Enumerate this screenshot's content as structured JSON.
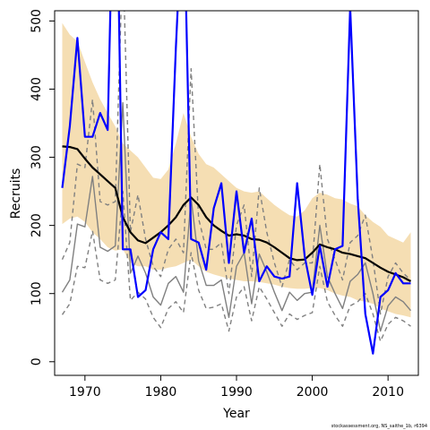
{
  "chart_data": {
    "type": "line",
    "xlabel": "Year",
    "ylabel": "Recruits",
    "xlim": [
      1966,
      2014
    ],
    "ylim": [
      -20,
      515
    ],
    "x_ticks": [
      1970,
      1980,
      1990,
      2000,
      2010
    ],
    "x_tick_labels": [
      "1970",
      "1980",
      "1990",
      "2000",
      "2010"
    ],
    "y_ticks": [
      0,
      100,
      200,
      300,
      400,
      500
    ],
    "y_tick_labels": [
      "0",
      "100",
      "200",
      "300",
      "400",
      "500"
    ],
    "footer": "stockassessment.org, NS_saithe_1b, r6394",
    "years": [
      1967,
      1968,
      1969,
      1970,
      1971,
      1972,
      1973,
      1974,
      1975,
      1976,
      1977,
      1978,
      1979,
      1980,
      1981,
      1982,
      1983,
      1984,
      1985,
      1986,
      1987,
      1988,
      1989,
      1990,
      1991,
      1992,
      1993,
      1994,
      1995,
      1996,
      1997,
      1998,
      1999,
      2000,
      2001,
      2002,
      2003,
      2004,
      2005,
      2006,
      2007,
      2008,
      2009,
      2010,
      2011,
      2012,
      2013
    ],
    "band": {
      "color": "#f5deb3",
      "upper": [
        497,
        480,
        470,
        440,
        410,
        385,
        365,
        345,
        320,
        310,
        300,
        285,
        270,
        268,
        282,
        320,
        365,
        330,
        305,
        290,
        285,
        275,
        265,
        255,
        250,
        248,
        250,
        240,
        230,
        222,
        215,
        213,
        222,
        240,
        248,
        245,
        240,
        238,
        232,
        228,
        215,
        205,
        198,
        185,
        180,
        175,
        190
      ],
      "lower": [
        202,
        210,
        213,
        205,
        190,
        180,
        168,
        163,
        165,
        145,
        140,
        140,
        135,
        135,
        138,
        140,
        145,
        150,
        140,
        132,
        128,
        125,
        122,
        120,
        118,
        118,
        117,
        115,
        113,
        110,
        108,
        107,
        107,
        108,
        108,
        105,
        100,
        97,
        95,
        90,
        88,
        85,
        78,
        74,
        70,
        68,
        65
      ]
    },
    "series": [
      {
        "color": "#000000",
        "values": [
          316,
          315,
          312,
          298,
          285,
          275,
          265,
          255,
          212,
          190,
          178,
          174,
          182,
          190,
          200,
          212,
          230,
          241,
          230,
          212,
          200,
          192,
          185,
          187,
          185,
          180,
          179,
          175,
          168,
          160,
          152,
          149,
          150,
          160,
          172,
          168,
          165,
          160,
          158,
          155,
          152,
          145,
          138,
          132,
          128,
          124,
          118
        ]
      },
      {
        "color": "#0000ff",
        "values": [
          255,
          345,
          475,
          330,
          330,
          365,
          340,
          840,
          165,
          165,
          95,
          105,
          165,
          190,
          180,
          460,
          700,
          180,
          175,
          135,
          225,
          262,
          145,
          250,
          160,
          210,
          118,
          140,
          125,
          122,
          125,
          262,
          155,
          98,
          170,
          110,
          165,
          170,
          520,
          240,
          70,
          12,
          95,
          105,
          130,
          115,
          115
        ]
      },
      {
        "color": "#808080",
        "values": [
          102,
          120,
          202,
          198,
          272,
          168,
          162,
          170,
          380,
          130,
          155,
          130,
          95,
          83,
          115,
          125,
          102,
          240,
          148,
          112,
          112,
          120,
          65,
          140,
          160,
          85,
          158,
          132,
          102,
          75,
          102,
          90,
          100,
          102,
          200,
          125,
          100,
          78,
          118,
          128,
          145,
          100,
          45,
          82,
          95,
          88,
          75
        ]
      },
      {
        "color": "#808080",
        "dash": true,
        "values": [
          150,
          175,
          290,
          285,
          385,
          235,
          230,
          235,
          600,
          190,
          245,
          180,
          140,
          125,
          165,
          180,
          160,
          430,
          210,
          165,
          165,
          175,
          100,
          200,
          230,
          125,
          255,
          190,
          145,
          110,
          150,
          135,
          145,
          145,
          290,
          180,
          150,
          120,
          175,
          185,
          215,
          150,
          70,
          125,
          145,
          130,
          120
        ]
      },
      {
        "color": "#808080",
        "dash": true,
        "values": [
          69,
          85,
          140,
          138,
          192,
          120,
          115,
          120,
          250,
          90,
          102,
          92,
          65,
          50,
          78,
          88,
          72,
          160,
          105,
          78,
          80,
          85,
          45,
          95,
          110,
          60,
          110,
          92,
          72,
          52,
          70,
          62,
          68,
          72,
          140,
          88,
          68,
          52,
          82,
          88,
          100,
          70,
          30,
          55,
          65,
          60,
          52
        ]
      }
    ]
  }
}
